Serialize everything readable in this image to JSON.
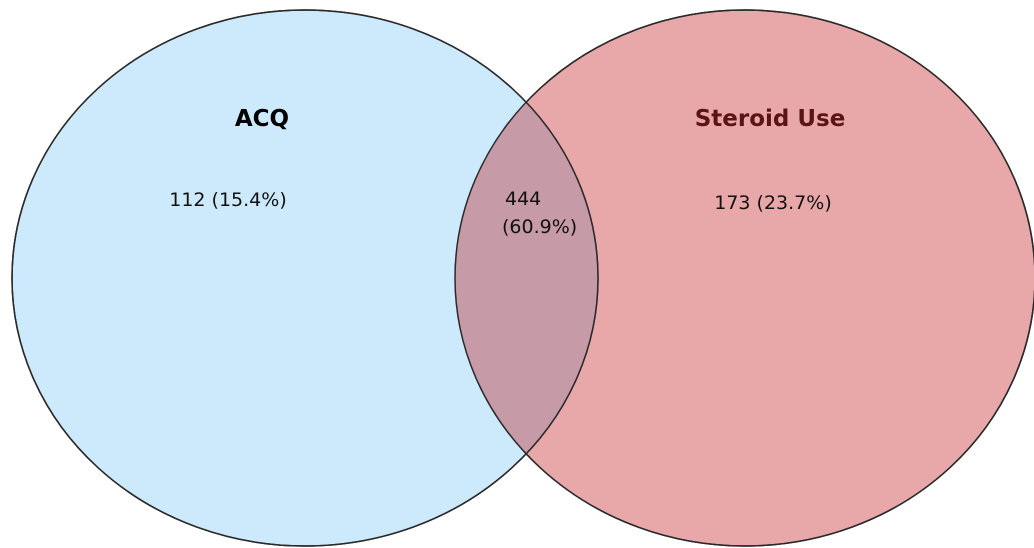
{
  "sets": {
    "left": {
      "label": "ACQ",
      "only": "112 (15.4%)",
      "fill": "#cdeafc",
      "label_color": "#000000"
    },
    "right": {
      "label": "Steroid Use",
      "only": "173 (23.7%)",
      "fill": "#e8a8aa",
      "label_color": "#5a1414"
    }
  },
  "overlap": {
    "count": "444",
    "percent": "(60.9%)",
    "fill": "#c69aa6"
  },
  "outline_color": "#2a2a2a"
}
